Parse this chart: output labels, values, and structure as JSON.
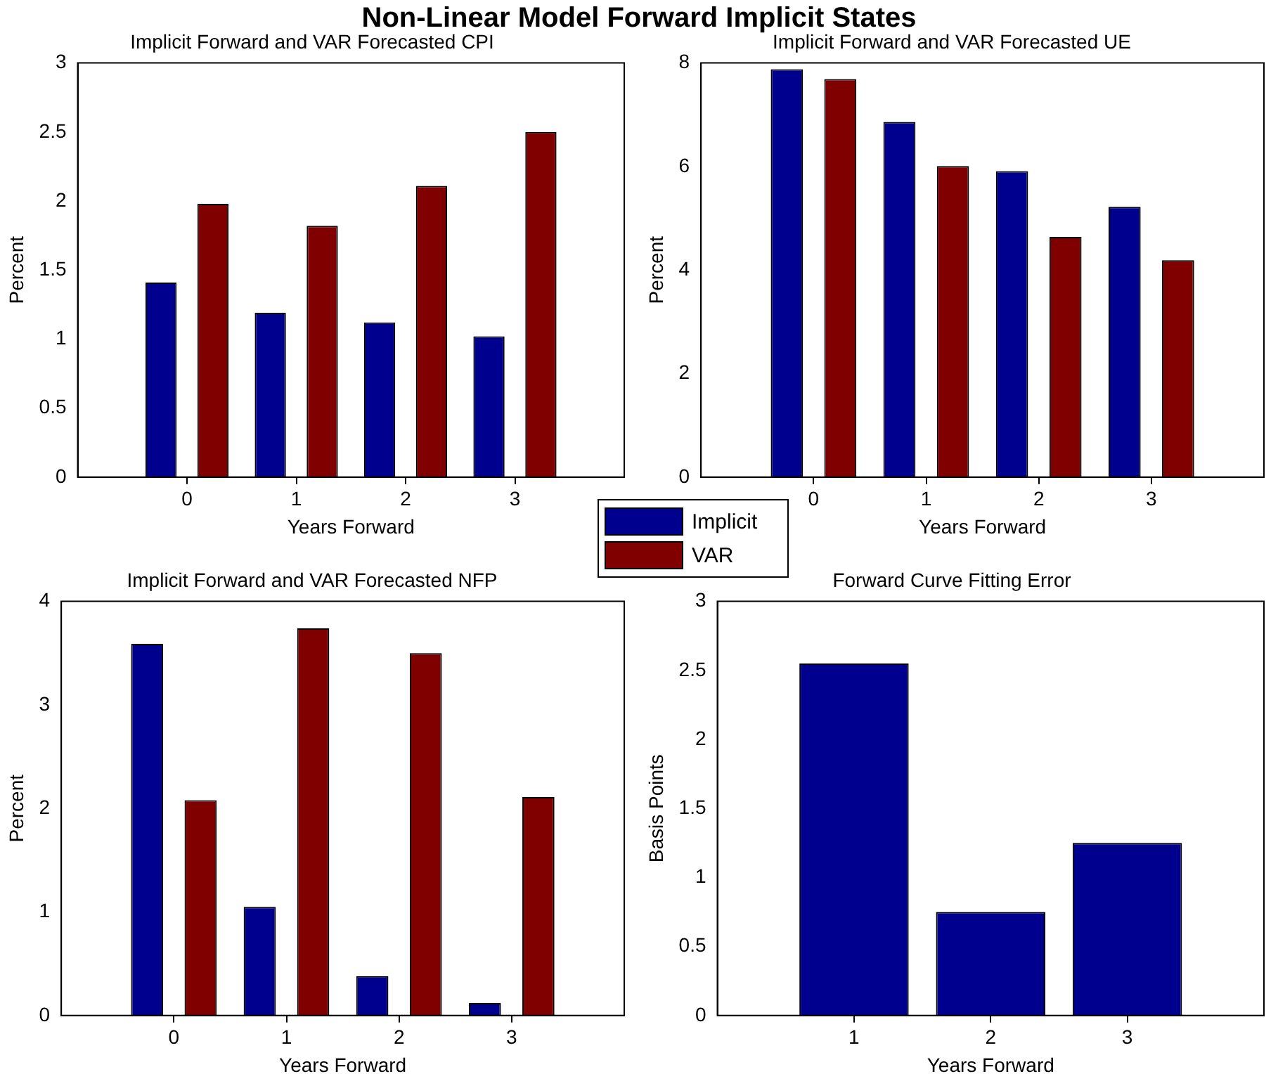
{
  "chart_data": [
    {
      "type": "bar",
      "title": "Implicit Forward and VAR Forecasted CPI",
      "xlabel": "Years Forward",
      "ylabel": "Percent",
      "categories": [
        "0",
        "1",
        "2",
        "3"
      ],
      "ylim": [
        0,
        3
      ],
      "yticks": [
        0,
        {
          "value": 0.5,
          "label": "0.5"
        },
        1,
        {
          "value": 1.5,
          "label": "1.5"
        },
        2,
        {
          "value": 2.5,
          "label": "2.5"
        },
        3
      ],
      "legend": "bottom right",
      "annotations": [
        "Non-Linear Model Forward Implicit States"
      ],
      "series": [
        {
          "name": "Implicit",
          "color": "#00008f",
          "values": [
            1.41,
            1.19,
            1.12,
            1.02
          ]
        },
        {
          "name": "VAR",
          "color": "#800000",
          "values": [
            1.98,
            1.82,
            2.11,
            2.5
          ]
        }
      ]
    },
    {
      "type": "bar",
      "title": "Implicit Forward and VAR Forecasted UE",
      "xlabel": "Years Forward",
      "ylabel": "Percent",
      "categories": [
        "0",
        "1",
        "2",
        "3"
      ],
      "ylim": [
        0,
        8
      ],
      "yticks": [
        0,
        2,
        4,
        6,
        8
      ],
      "series": [
        {
          "color": "#00008f",
          "values": [
            7.88,
            6.86,
            5.91,
            5.22
          ]
        },
        {
          "color": "#800000",
          "values": [
            7.69,
            6.01,
            4.64,
            4.19
          ]
        }
      ]
    },
    {
      "type": "bar",
      "title": "Implicit Forward and VAR Forecasted NFP",
      "xlabel": "Years Forward",
      "ylabel": "Percent",
      "categories": [
        "0",
        "1",
        "2",
        "3"
      ],
      "ylim": [
        0,
        4
      ],
      "yticks": [
        0,
        1,
        2,
        3,
        4
      ],
      "series": [
        {
          "color": "#00008f",
          "values": [
            3.59,
            1.05,
            0.38,
            0.12
          ]
        },
        {
          "color": "#800000",
          "values": [
            2.08,
            3.74,
            3.5,
            2.11
          ]
        }
      ]
    },
    {
      "type": "bar",
      "title": "Forward Curve Fitting Error",
      "xlabel": "Years Forward",
      "ylabel": "Basis Points",
      "categories": [
        "1",
        "2",
        "3"
      ],
      "ylim": [
        0,
        3
      ],
      "yticks": [
        0,
        {
          "value": 0.5,
          "label": "0.5"
        },
        1,
        {
          "value": 1.5,
          "label": "1.5"
        },
        2,
        {
          "value": 2.5,
          "label": "2.5"
        },
        3
      ],
      "series": [
        {
          "color": "#00008f",
          "values": [
            2.55,
            0.75,
            1.25
          ]
        }
      ]
    }
  ]
}
